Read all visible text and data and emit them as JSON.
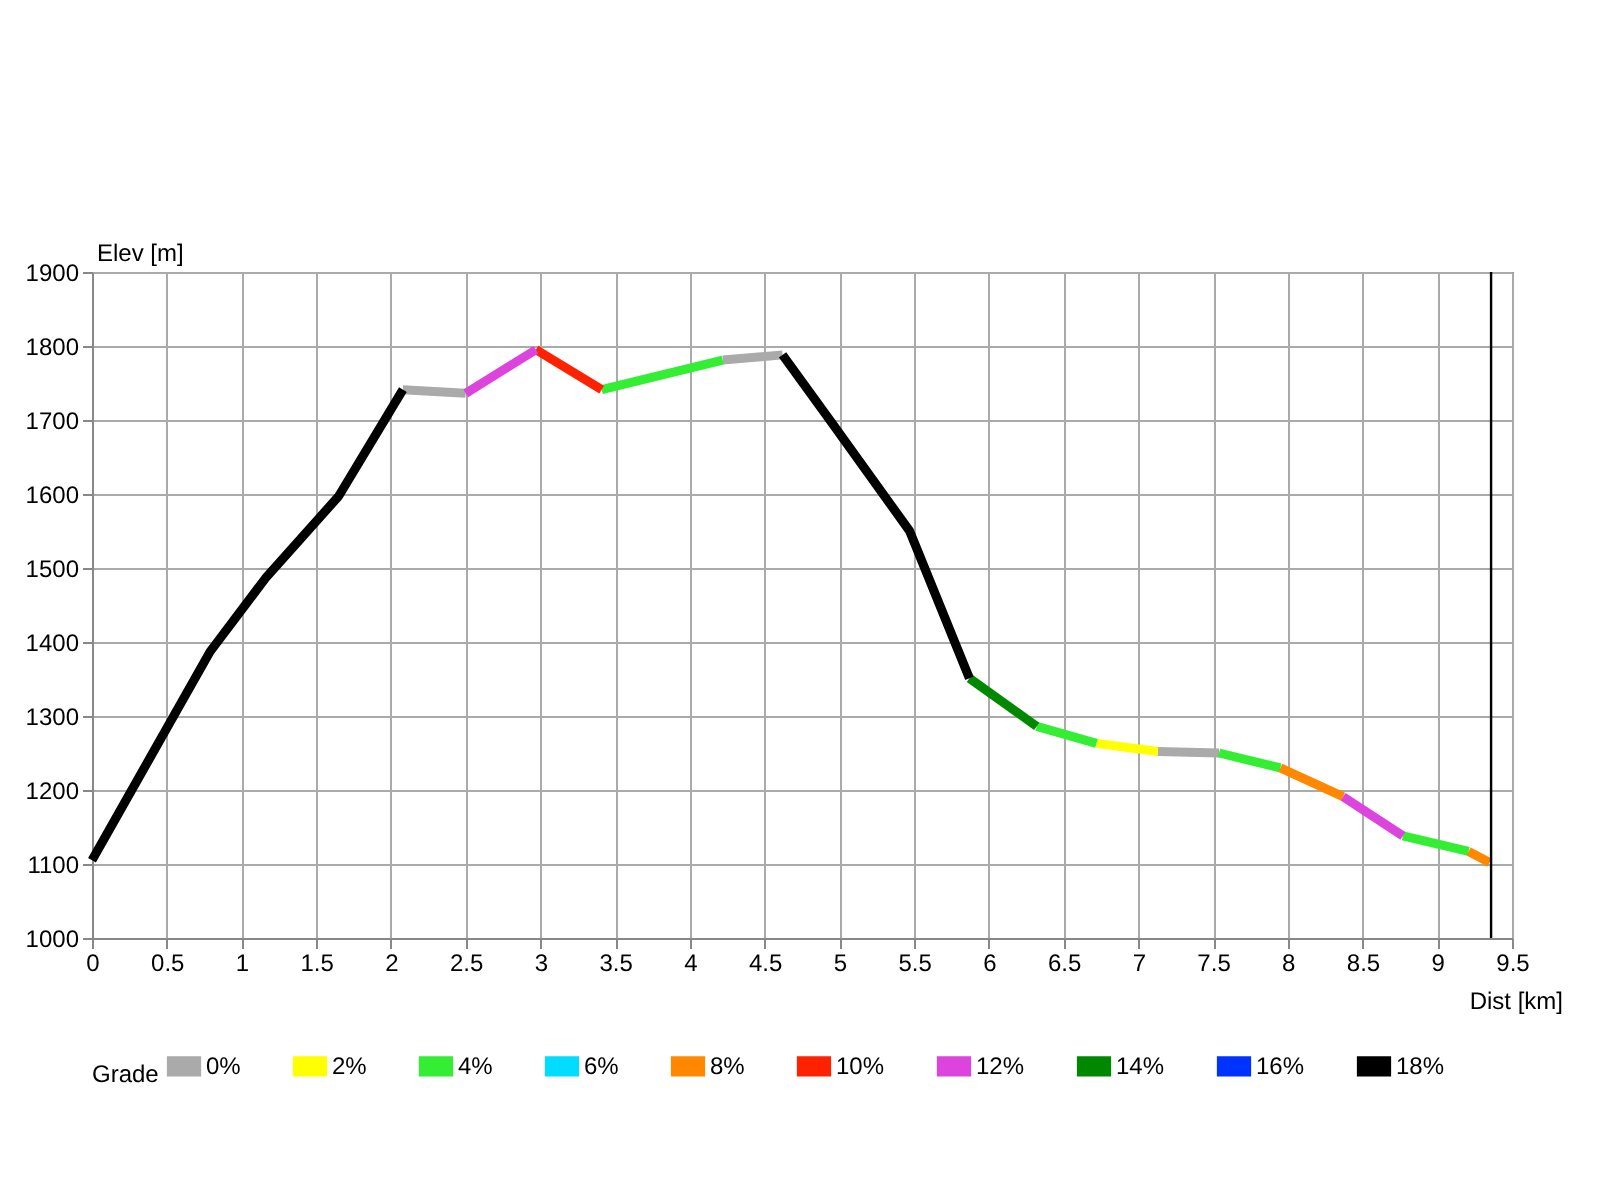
{
  "chart_data": {
    "type": "line",
    "xlabel": "Dist [km]",
    "ylabel": "Elev [m]",
    "legend_title": "Grade",
    "legend": "bottom",
    "grid": true,
    "xlim": [
      0,
      9.5
    ],
    "xticks": [
      0,
      0.5,
      1,
      1.5,
      2,
      2.5,
      3,
      3.5,
      4,
      4.5,
      5,
      5.5,
      6,
      6.5,
      7,
      7.5,
      8,
      8.5,
      9,
      9.5
    ],
    "ylim": [
      1000,
      1900
    ],
    "yticks": [
      1000,
      1100,
      1200,
      1300,
      1400,
      1500,
      1600,
      1700,
      1800,
      1900
    ],
    "ref_lines": [
      {
        "axis": "x",
        "value": 9.36,
        "color": "#000000"
      }
    ],
    "series": [
      {
        "name": "0%",
        "color": "#aaaaaa",
        "x": [
          2.08,
          2.5,
          null,
          4.22,
          4.62,
          null,
          7.13,
          7.54
        ],
        "values": [
          1741,
          1736,
          null,
          1781,
          1788,
          null,
          1252,
          1250
        ]
      },
      {
        "name": "2%",
        "color": "#ffff00",
        "x": [
          6.72,
          7.13
        ],
        "values": [
          1263,
          1252
        ]
      },
      {
        "name": "4%",
        "color": "#33ee33",
        "x": [
          3.41,
          4.22,
          null,
          6.32,
          6.72,
          null,
          7.54,
          7.95,
          null,
          8.77,
          9.21
        ],
        "values": [
          1741,
          1781,
          null,
          1286,
          1263,
          null,
          1250,
          1230,
          null,
          1138,
          1117
        ]
      },
      {
        "name": "6%",
        "color": "#00ddff"
      },
      {
        "name": "8%",
        "color": "#ff8800",
        "x": [
          7.95,
          8.37,
          null,
          9.21,
          9.35
        ],
        "values": [
          1230,
          1191,
          null,
          1117,
          1102
        ]
      },
      {
        "name": "10%",
        "color": "#ff2200",
        "x": [
          2.97,
          3.41
        ],
        "values": [
          1795,
          1741
        ]
      },
      {
        "name": "12%",
        "color": "#dd44dd",
        "x": [
          2.5,
          2.97,
          null,
          8.37,
          8.77
        ],
        "values": [
          1736,
          1795,
          null,
          1191,
          1138
        ]
      },
      {
        "name": "14%",
        "color": "#008800",
        "x": [
          5.87,
          6.32
        ],
        "values": [
          1351,
          1286
        ]
      },
      {
        "name": "16%",
        "color": "#0033ff"
      },
      {
        "name": "18%",
        "color": "#000000",
        "x": [
          0,
          0.79,
          1.16,
          1.65,
          2.08,
          null,
          4.62,
          4.95,
          5.47,
          5.87
        ],
        "values": [
          1105,
          1387,
          1486,
          1597,
          1741,
          null,
          1788,
          1696,
          1550,
          1351
        ]
      }
    ]
  }
}
